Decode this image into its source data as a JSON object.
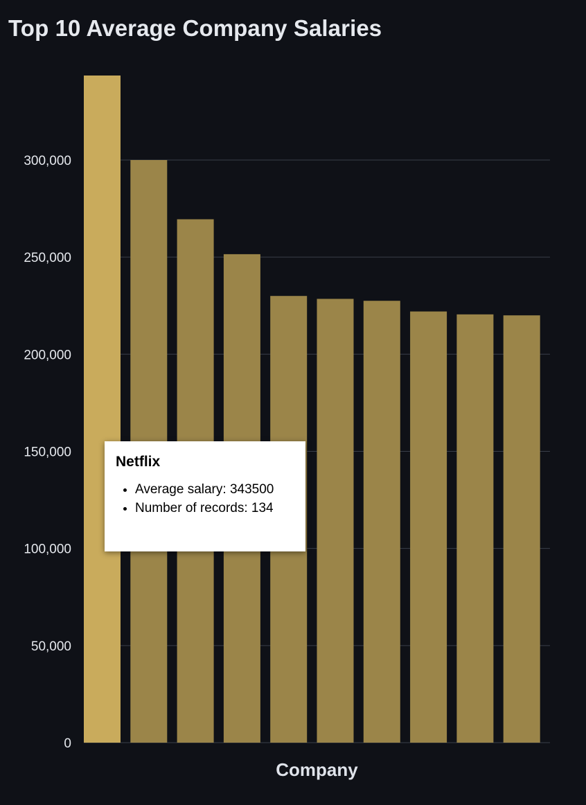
{
  "chart_data": {
    "type": "bar",
    "title": "Top 10 Average Company Salaries",
    "xlabel": "Company",
    "ylabel": "",
    "categories": [
      "Netflix",
      "",
      "",
      "",
      "",
      "",
      "",
      "",
      "",
      ""
    ],
    "values": [
      343500,
      300000,
      269500,
      251500,
      230000,
      228500,
      227500,
      222000,
      220500,
      220000
    ],
    "ylim": [
      0,
      343500
    ],
    "yticks": [
      0,
      50000,
      100000,
      150000,
      200000,
      250000,
      300000
    ],
    "ytick_labels": [
      "0",
      "50,000",
      "100,000",
      "150,000",
      "200,000",
      "250,000",
      "300,000"
    ],
    "grid": true,
    "highlighted_index": 0,
    "colors": {
      "background": "#0f1117",
      "bar": "#9b8549",
      "bar_highlight": "#c9ab5c",
      "grid": "#3a3f4a",
      "text": "#e6e9ee"
    }
  },
  "tooltip": {
    "title": "Netflix",
    "items": [
      "Average salary: 343500",
      "Number of records: 134"
    ]
  }
}
